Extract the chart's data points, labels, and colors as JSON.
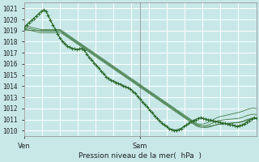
{
  "title": "",
  "xlabel": "Pression niveau de la mer(  hPa  )",
  "ylabel": "",
  "bg_color": "#c8e8e8",
  "grid_color": "#ffffff",
  "line_color": "#2d6b2d",
  "ylim": [
    1009.5,
    1021.5
  ],
  "yticks": [
    1010,
    1011,
    1012,
    1013,
    1014,
    1015,
    1016,
    1017,
    1018,
    1019,
    1020,
    1021
  ],
  "xtick_labels": [
    "Ven",
    "Sam"
  ],
  "xtick_pos": [
    0,
    48
  ],
  "vline_x": 48,
  "n_points": 97,
  "main_line": [
    1019.2,
    1019.5,
    1019.7,
    1019.9,
    1020.1,
    1020.3,
    1020.5,
    1020.7,
    1020.85,
    1020.75,
    1020.4,
    1019.9,
    1019.5,
    1019.1,
    1018.7,
    1018.3,
    1018.0,
    1017.8,
    1017.6,
    1017.5,
    1017.4,
    1017.35,
    1017.3,
    1017.35,
    1017.4,
    1017.2,
    1016.9,
    1016.6,
    1016.35,
    1016.1,
    1015.85,
    1015.6,
    1015.35,
    1015.1,
    1014.85,
    1014.7,
    1014.55,
    1014.45,
    1014.35,
    1014.25,
    1014.15,
    1014.05,
    1013.95,
    1013.85,
    1013.75,
    1013.55,
    1013.35,
    1013.1,
    1012.85,
    1012.6,
    1012.35,
    1012.1,
    1011.85,
    1011.6,
    1011.35,
    1011.1,
    1010.9,
    1010.7,
    1010.5,
    1010.35,
    1010.2,
    1010.1,
    1010.05,
    1010.05,
    1010.1,
    1010.2,
    1010.35,
    1010.5,
    1010.65,
    1010.8,
    1010.9,
    1011.0,
    1011.1,
    1011.15,
    1011.1,
    1011.05,
    1011.0,
    1010.95,
    1010.9,
    1010.85,
    1010.8,
    1010.75,
    1010.7,
    1010.65,
    1010.6,
    1010.55,
    1010.5,
    1010.45,
    1010.4,
    1010.45,
    1010.5,
    1010.6,
    1010.75,
    1010.9,
    1011.05,
    1011.15,
    1011.1
  ],
  "ensemble_lines": [
    [
      1019.0,
      1019.0,
      1019.0,
      1019.0,
      1019.0,
      1019.0,
      1019.0,
      1019.0,
      1019.0,
      1019.0,
      1019.0,
      1019.0,
      1019.0,
      1019.0,
      1019.0,
      1019.0,
      1018.85,
      1018.7,
      1018.55,
      1018.4,
      1018.25,
      1018.1,
      1017.95,
      1017.8,
      1017.65,
      1017.5,
      1017.35,
      1017.2,
      1017.05,
      1016.9,
      1016.75,
      1016.6,
      1016.45,
      1016.3,
      1016.15,
      1016.0,
      1015.85,
      1015.7,
      1015.55,
      1015.4,
      1015.25,
      1015.1,
      1014.95,
      1014.8,
      1014.65,
      1014.5,
      1014.35,
      1014.2,
      1014.05,
      1013.9,
      1013.75,
      1013.6,
      1013.45,
      1013.3,
      1013.15,
      1013.0,
      1012.85,
      1012.7,
      1012.55,
      1012.4,
      1012.25,
      1012.1,
      1011.95,
      1011.8,
      1011.65,
      1011.5,
      1011.35,
      1011.2,
      1011.05,
      1010.9,
      1010.75,
      1010.6,
      1010.5,
      1010.45,
      1010.4,
      1010.38,
      1010.38,
      1010.4,
      1010.45,
      1010.5,
      1010.55,
      1010.58,
      1010.6,
      1010.62,
      1010.64,
      1010.66,
      1010.68,
      1010.7,
      1010.72,
      1010.74,
      1010.78,
      1010.84,
      1010.9,
      1010.98,
      1011.05,
      1011.1,
      1011.12
    ],
    [
      1019.15,
      1019.1,
      1019.05,
      1019.0,
      1018.95,
      1018.9,
      1018.85,
      1018.8,
      1018.8,
      1018.8,
      1018.8,
      1018.8,
      1018.8,
      1018.8,
      1018.8,
      1018.8,
      1018.7,
      1018.55,
      1018.4,
      1018.25,
      1018.1,
      1017.95,
      1017.8,
      1017.65,
      1017.5,
      1017.35,
      1017.2,
      1017.05,
      1016.9,
      1016.75,
      1016.6,
      1016.45,
      1016.3,
      1016.15,
      1016.0,
      1015.85,
      1015.7,
      1015.55,
      1015.4,
      1015.25,
      1015.1,
      1014.95,
      1014.8,
      1014.65,
      1014.5,
      1014.35,
      1014.2,
      1014.05,
      1013.9,
      1013.75,
      1013.6,
      1013.45,
      1013.3,
      1013.15,
      1013.0,
      1012.85,
      1012.7,
      1012.55,
      1012.4,
      1012.25,
      1012.1,
      1011.95,
      1011.8,
      1011.65,
      1011.5,
      1011.35,
      1011.2,
      1011.05,
      1010.9,
      1010.75,
      1010.6,
      1010.45,
      1010.35,
      1010.3,
      1010.28,
      1010.28,
      1010.3,
      1010.35,
      1010.42,
      1010.5,
      1010.55,
      1010.58,
      1010.6,
      1010.62,
      1010.64,
      1010.66,
      1010.68,
      1010.7,
      1010.72,
      1010.76,
      1010.82,
      1010.9,
      1010.98,
      1011.05,
      1011.1,
      1011.12,
      1011.1
    ],
    [
      1019.3,
      1019.25,
      1019.2,
      1019.15,
      1019.1,
      1019.05,
      1019.0,
      1018.95,
      1018.95,
      1018.95,
      1018.95,
      1018.95,
      1018.95,
      1018.95,
      1018.95,
      1018.95,
      1018.8,
      1018.65,
      1018.5,
      1018.35,
      1018.2,
      1018.05,
      1017.9,
      1017.75,
      1017.6,
      1017.45,
      1017.3,
      1017.15,
      1017.0,
      1016.85,
      1016.7,
      1016.55,
      1016.4,
      1016.25,
      1016.1,
      1015.95,
      1015.8,
      1015.65,
      1015.5,
      1015.35,
      1015.2,
      1015.05,
      1014.9,
      1014.75,
      1014.6,
      1014.45,
      1014.3,
      1014.15,
      1014.0,
      1013.85,
      1013.7,
      1013.55,
      1013.4,
      1013.25,
      1013.1,
      1012.95,
      1012.8,
      1012.65,
      1012.5,
      1012.35,
      1012.2,
      1012.05,
      1011.9,
      1011.75,
      1011.6,
      1011.45,
      1011.3,
      1011.15,
      1011.0,
      1010.85,
      1010.7,
      1010.55,
      1010.45,
      1010.42,
      1010.42,
      1010.45,
      1010.5,
      1010.58,
      1010.68,
      1010.8,
      1010.88,
      1010.92,
      1010.95,
      1010.98,
      1011.0,
      1011.02,
      1011.04,
      1011.06,
      1011.08,
      1011.12,
      1011.18,
      1011.26,
      1011.34,
      1011.4,
      1011.45,
      1011.48,
      1011.45
    ],
    [
      1019.45,
      1019.4,
      1019.35,
      1019.3,
      1019.25,
      1019.2,
      1019.15,
      1019.1,
      1019.1,
      1019.1,
      1019.1,
      1019.1,
      1019.1,
      1019.1,
      1019.1,
      1019.1,
      1018.95,
      1018.8,
      1018.65,
      1018.5,
      1018.35,
      1018.2,
      1018.05,
      1017.9,
      1017.75,
      1017.6,
      1017.45,
      1017.3,
      1017.15,
      1017.0,
      1016.85,
      1016.7,
      1016.55,
      1016.4,
      1016.25,
      1016.1,
      1015.95,
      1015.8,
      1015.65,
      1015.5,
      1015.35,
      1015.2,
      1015.05,
      1014.9,
      1014.75,
      1014.6,
      1014.45,
      1014.3,
      1014.15,
      1014.0,
      1013.85,
      1013.7,
      1013.55,
      1013.4,
      1013.25,
      1013.1,
      1012.95,
      1012.8,
      1012.65,
      1012.5,
      1012.35,
      1012.2,
      1012.05,
      1011.9,
      1011.75,
      1011.6,
      1011.45,
      1011.3,
      1011.15,
      1011.0,
      1010.85,
      1010.7,
      1010.6,
      1010.58,
      1010.6,
      1010.65,
      1010.73,
      1010.83,
      1010.95,
      1011.08,
      1011.18,
      1011.25,
      1011.3,
      1011.35,
      1011.4,
      1011.45,
      1011.5,
      1011.55,
      1011.6,
      1011.65,
      1011.72,
      1011.8,
      1011.88,
      1011.95,
      1012.0,
      1012.02,
      1011.98
    ]
  ]
}
